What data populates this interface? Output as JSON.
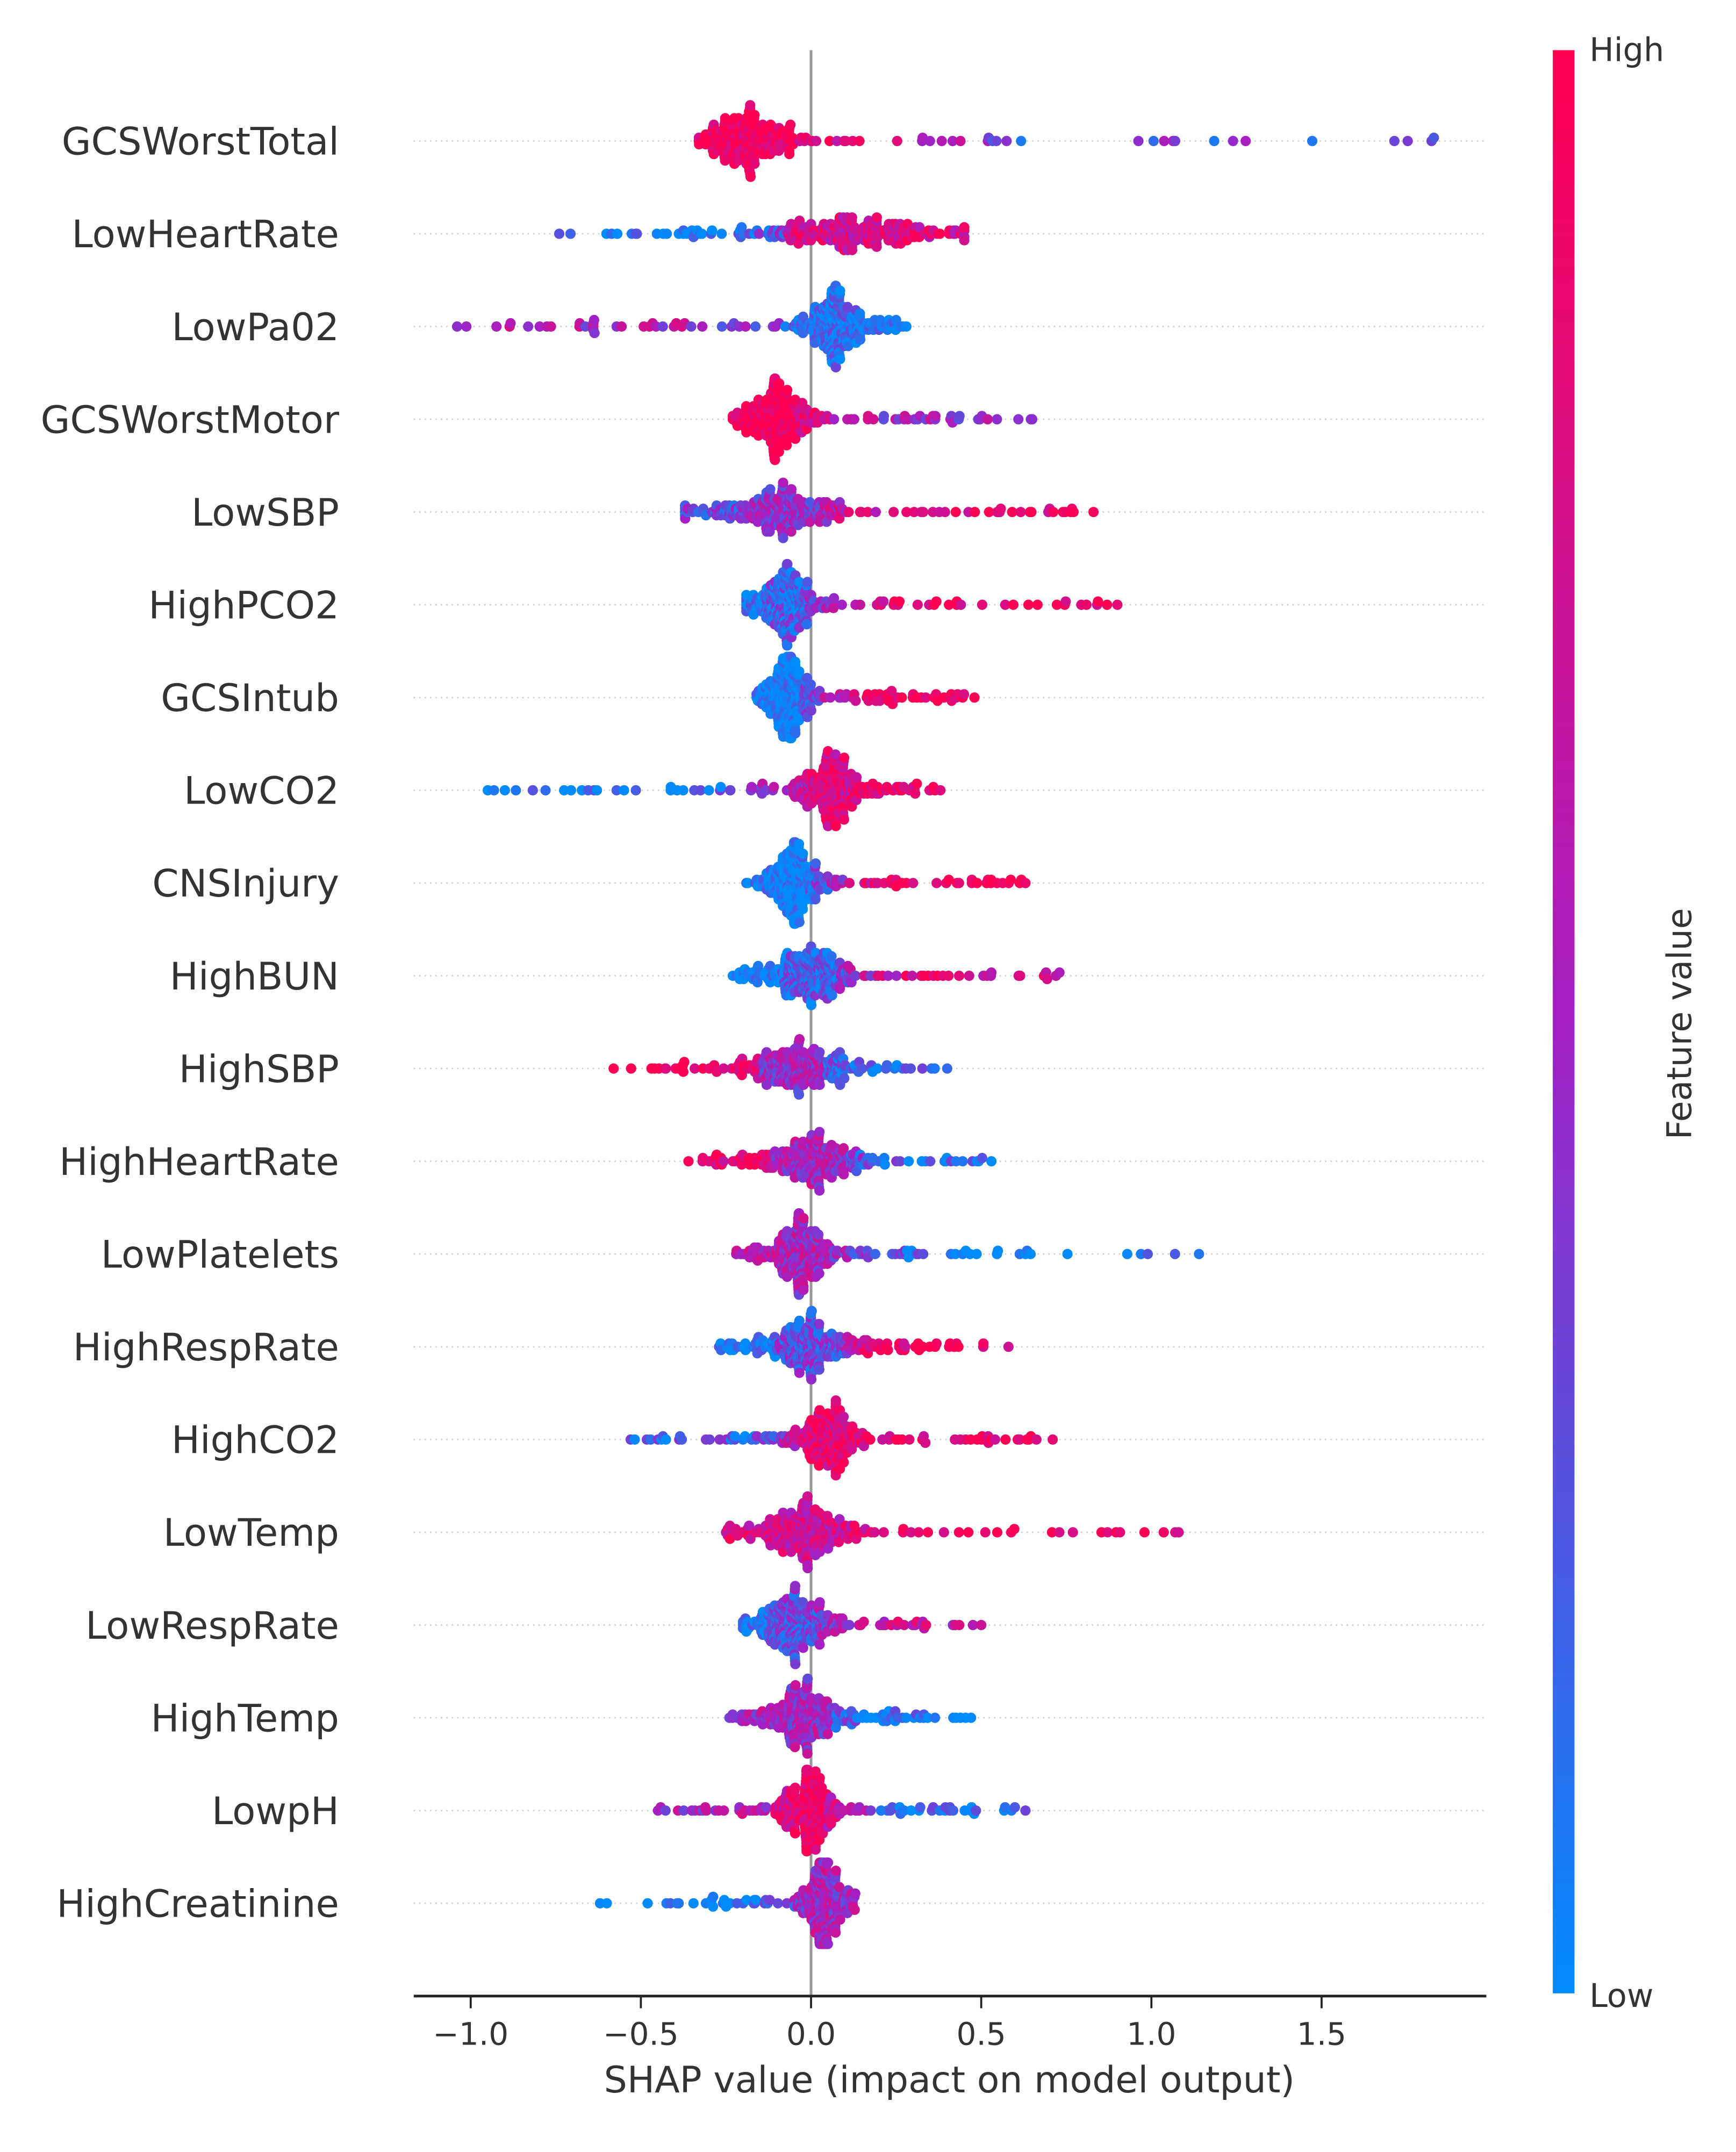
{
  "chart_data": {
    "type": "scatter",
    "subtype": "shap-beeswarm-summary",
    "xlabel": "SHAP value (impact on model output)",
    "xlim": [
      -1.18,
      1.98
    ],
    "xticks": [
      -1.0,
      -0.5,
      0.0,
      0.5,
      1.0,
      1.5
    ],
    "xtick_labels": [
      "−1.0",
      "−0.5",
      "0.0",
      "0.5",
      "1.0",
      "1.5"
    ],
    "colorbar": {
      "label": "Feature value",
      "high_label": "High",
      "low_label": "Low",
      "high_color": "#ff0052",
      "low_color": "#008bfb",
      "mid_color": "#a41fc4"
    },
    "zero_line_color": "#999999",
    "features": [
      {
        "name": "GCSWorstTotal",
        "min": -0.33,
        "max": 1.83,
        "peak": -0.17,
        "spread": 0.07,
        "left_color": 1.0,
        "center_color": 1.0,
        "right_color": 0.3,
        "gap": [
          0.64,
          0.96
        ]
      },
      {
        "name": "LowHeartRate",
        "min": -0.74,
        "max": 0.45,
        "peak": 0.1,
        "spread": 0.14,
        "left_color": 0.05,
        "center_color": 0.75,
        "right_color": 0.8
      },
      {
        "name": "LowPa02",
        "min": -1.04,
        "max": 0.28,
        "peak": 0.06,
        "spread": 0.05,
        "left_color": 0.55,
        "center_color": 0.1,
        "right_color": 0.05
      },
      {
        "name": "GCSWorstMotor",
        "min": -0.23,
        "max": 0.65,
        "peak": -0.1,
        "spread": 0.05,
        "left_color": 1.0,
        "center_color": 1.0,
        "right_color": 0.5
      },
      {
        "name": "LowSBP",
        "min": -0.37,
        "max": 0.83,
        "peak": -0.08,
        "spread": 0.1,
        "left_color": 0.3,
        "center_color": 0.45,
        "right_color": 0.9
      },
      {
        "name": "HighPCO2",
        "min": -0.19,
        "max": 0.9,
        "peak": -0.07,
        "spread": 0.05,
        "left_color": 0.1,
        "center_color": 0.2,
        "right_color": 0.95
      },
      {
        "name": "GCSIntub",
        "min": -0.16,
        "max": 0.48,
        "peak": -0.07,
        "spread": 0.035,
        "left_color": 0.0,
        "center_color": 0.0,
        "right_color": 1.0
      },
      {
        "name": "LowCO2",
        "min": -0.95,
        "max": 0.38,
        "peak": 0.06,
        "spread": 0.05,
        "left_color": 0.05,
        "center_color": 0.8,
        "right_color": 0.9
      },
      {
        "name": "CNSInjury",
        "min": -0.19,
        "max": 0.63,
        "peak": -0.05,
        "spread": 0.04,
        "left_color": 0.0,
        "center_color": 0.0,
        "right_color": 1.0
      },
      {
        "name": "HighBUN",
        "min": -0.23,
        "max": 0.73,
        "peak": 0.0,
        "spread": 0.07,
        "left_color": 0.05,
        "center_color": 0.2,
        "right_color": 0.8
      },
      {
        "name": "HighSBP",
        "min": -0.58,
        "max": 0.4,
        "peak": -0.05,
        "spread": 0.08,
        "left_color": 1.0,
        "center_color": 0.5,
        "right_color": 0.1
      },
      {
        "name": "HighHeartRate",
        "min": -0.36,
        "max": 0.53,
        "peak": 0.0,
        "spread": 0.09,
        "left_color": 0.9,
        "center_color": 0.55,
        "right_color": 0.15
      },
      {
        "name": "LowPlatelets",
        "min": -0.22,
        "max": 1.14,
        "peak": -0.02,
        "spread": 0.05,
        "left_color": 0.6,
        "center_color": 0.55,
        "right_color": 0.0
      },
      {
        "name": "HighRespRate",
        "min": -0.27,
        "max": 0.58,
        "peak": 0.0,
        "spread": 0.08,
        "left_color": 0.05,
        "center_color": 0.3,
        "right_color": 0.95
      },
      {
        "name": "HighCO2",
        "min": -0.53,
        "max": 0.71,
        "peak": 0.05,
        "spread": 0.05,
        "left_color": 0.2,
        "center_color": 0.85,
        "right_color": 0.95
      },
      {
        "name": "LowTemp",
        "min": -0.25,
        "max": 1.08,
        "peak": -0.01,
        "spread": 0.07,
        "left_color": 0.8,
        "center_color": 0.7,
        "right_color": 0.95
      },
      {
        "name": "LowRespRate",
        "min": -0.2,
        "max": 0.5,
        "peak": -0.05,
        "spread": 0.06,
        "left_color": 0.1,
        "center_color": 0.3,
        "right_color": 0.65
      },
      {
        "name": "HighTemp",
        "min": -0.24,
        "max": 0.47,
        "peak": -0.02,
        "spread": 0.07,
        "left_color": 0.55,
        "center_color": 0.5,
        "right_color": 0.1
      },
      {
        "name": "LowpH",
        "min": -0.45,
        "max": 0.63,
        "peak": 0.0,
        "spread": 0.04,
        "left_color": 0.55,
        "center_color": 0.9,
        "right_color": 0.1
      },
      {
        "name": "HighCreatinine",
        "min": -0.62,
        "max": 0.13,
        "peak": 0.03,
        "spread": 0.03,
        "left_color": 0.0,
        "center_color": 0.55,
        "right_color": 0.5
      }
    ]
  }
}
